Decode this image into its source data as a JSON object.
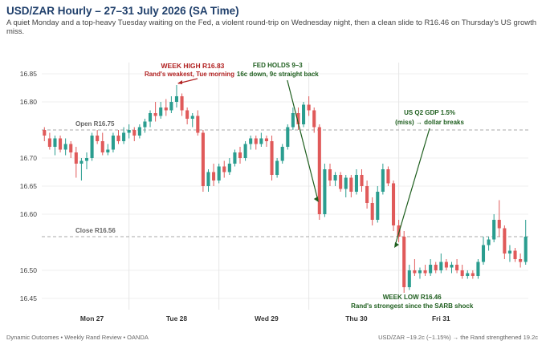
{
  "header": {
    "title": "USD/ZAR Hourly – 27–31 July 2026 (SA Time)",
    "subtitle": "A quiet Monday and a top-heavy Tuesday waiting on the Fed, a violent round-trip on Wednesday night, then a clean slide to R16.46 on Thursday's US growth miss."
  },
  "footer": {
    "source": "Dynamic Outcomes • Weekly Rand Review • OANDA",
    "summary": "USD/ZAR −19.2c (−1.15%) → the Rand strengthened 19.2c"
  },
  "chart_data": {
    "type": "candlestick",
    "ylim": [
      16.43,
      16.87
    ],
    "yticks": [
      16.45,
      16.5,
      16.6,
      16.65,
      16.7,
      16.8,
      16.85
    ],
    "ytick_labels": [
      "16.45",
      "16.50",
      "16.60",
      "16.65",
      "16.70",
      "16.80",
      "16.85"
    ],
    "x_labels": [
      {
        "label": "Mon 27",
        "at": 9
      },
      {
        "label": "Tue 28",
        "at": 25
      },
      {
        "label": "Wed 29",
        "at": 42
      },
      {
        "label": "Thu 30",
        "at": 59
      },
      {
        "label": "Fri 31",
        "at": 75
      }
    ],
    "day_separators": [
      16.5,
      33.5,
      50.5,
      67.5
    ],
    "reference_lines": [
      {
        "name": "Open",
        "value": 16.75,
        "label": "Open R16.75"
      },
      {
        "name": "Close",
        "value": 16.56,
        "label": "Close R16.56"
      }
    ],
    "colors": {
      "up": "#2a9d8f",
      "down": "#e05a5a",
      "annotation_red": "#b22222",
      "annotation_green": "#1e5e1e",
      "ref_line": "#aaaaaa"
    },
    "candles": [
      {
        "o": 16.75,
        "h": 16.755,
        "l": 16.73,
        "c": 16.74
      },
      {
        "o": 16.735,
        "h": 16.745,
        "l": 16.715,
        "c": 16.72
      },
      {
        "o": 16.72,
        "h": 16.74,
        "l": 16.705,
        "c": 16.735
      },
      {
        "o": 16.735,
        "h": 16.74,
        "l": 16.71,
        "c": 16.715
      },
      {
        "o": 16.715,
        "h": 16.735,
        "l": 16.705,
        "c": 16.725
      },
      {
        "o": 16.725,
        "h": 16.73,
        "l": 16.7,
        "c": 16.71
      },
      {
        "o": 16.71,
        "h": 16.72,
        "l": 16.665,
        "c": 16.69
      },
      {
        "o": 16.69,
        "h": 16.7,
        "l": 16.66,
        "c": 16.695
      },
      {
        "o": 16.695,
        "h": 16.71,
        "l": 16.68,
        "c": 16.7
      },
      {
        "o": 16.7,
        "h": 16.745,
        "l": 16.695,
        "c": 16.74
      },
      {
        "o": 16.74,
        "h": 16.75,
        "l": 16.725,
        "c": 16.73
      },
      {
        "o": 16.73,
        "h": 16.745,
        "l": 16.705,
        "c": 16.71
      },
      {
        "o": 16.71,
        "h": 16.725,
        "l": 16.705,
        "c": 16.715
      },
      {
        "o": 16.715,
        "h": 16.745,
        "l": 16.71,
        "c": 16.74
      },
      {
        "o": 16.74,
        "h": 16.75,
        "l": 16.725,
        "c": 16.73
      },
      {
        "o": 16.73,
        "h": 16.755,
        "l": 16.725,
        "c": 16.745
      },
      {
        "o": 16.745,
        "h": 16.76,
        "l": 16.735,
        "c": 16.75
      },
      {
        "o": 16.75,
        "h": 16.755,
        "l": 16.73,
        "c": 16.74
      },
      {
        "o": 16.74,
        "h": 16.76,
        "l": 16.735,
        "c": 16.755
      },
      {
        "o": 16.755,
        "h": 16.77,
        "l": 16.745,
        "c": 16.765
      },
      {
        "o": 16.765,
        "h": 16.785,
        "l": 16.755,
        "c": 16.78
      },
      {
        "o": 16.78,
        "h": 16.8,
        "l": 16.765,
        "c": 16.775
      },
      {
        "o": 16.775,
        "h": 16.8,
        "l": 16.77,
        "c": 16.79
      },
      {
        "o": 16.79,
        "h": 16.805,
        "l": 16.775,
        "c": 16.785
      },
      {
        "o": 16.785,
        "h": 16.81,
        "l": 16.78,
        "c": 16.8
      },
      {
        "o": 16.8,
        "h": 16.83,
        "l": 16.79,
        "c": 16.81
      },
      {
        "o": 16.81,
        "h": 16.815,
        "l": 16.775,
        "c": 16.785
      },
      {
        "o": 16.785,
        "h": 16.79,
        "l": 16.76,
        "c": 16.77
      },
      {
        "o": 16.77,
        "h": 16.78,
        "l": 16.755,
        "c": 16.775
      },
      {
        "o": 16.775,
        "h": 16.785,
        "l": 16.74,
        "c": 16.745
      },
      {
        "o": 16.745,
        "h": 16.75,
        "l": 16.64,
        "c": 16.65
      },
      {
        "o": 16.65,
        "h": 16.68,
        "l": 16.64,
        "c": 16.675
      },
      {
        "o": 16.675,
        "h": 16.69,
        "l": 16.65,
        "c": 16.66
      },
      {
        "o": 16.66,
        "h": 16.69,
        "l": 16.655,
        "c": 16.685
      },
      {
        "o": 16.685,
        "h": 16.695,
        "l": 16.665,
        "c": 16.675
      },
      {
        "o": 16.675,
        "h": 16.7,
        "l": 16.67,
        "c": 16.69
      },
      {
        "o": 16.69,
        "h": 16.715,
        "l": 16.685,
        "c": 16.71
      },
      {
        "o": 16.71,
        "h": 16.72,
        "l": 16.69,
        "c": 16.7
      },
      {
        "o": 16.7,
        "h": 16.73,
        "l": 16.695,
        "c": 16.725
      },
      {
        "o": 16.725,
        "h": 16.74,
        "l": 16.715,
        "c": 16.735
      },
      {
        "o": 16.735,
        "h": 16.74,
        "l": 16.715,
        "c": 16.725
      },
      {
        "o": 16.725,
        "h": 16.745,
        "l": 16.72,
        "c": 16.735
      },
      {
        "o": 16.735,
        "h": 16.74,
        "l": 16.72,
        "c": 16.73
      },
      {
        "o": 16.73,
        "h": 16.74,
        "l": 16.66,
        "c": 16.67
      },
      {
        "o": 16.67,
        "h": 16.7,
        "l": 16.665,
        "c": 16.695
      },
      {
        "o": 16.695,
        "h": 16.725,
        "l": 16.69,
        "c": 16.72
      },
      {
        "o": 16.72,
        "h": 16.76,
        "l": 16.715,
        "c": 16.755
      },
      {
        "o": 16.755,
        "h": 16.79,
        "l": 16.75,
        "c": 16.78
      },
      {
        "o": 16.78,
        "h": 16.79,
        "l": 16.75,
        "c": 16.76
      },
      {
        "o": 16.76,
        "h": 16.8,
        "l": 16.755,
        "c": 16.795
      },
      {
        "o": 16.795,
        "h": 16.81,
        "l": 16.775,
        "c": 16.785
      },
      {
        "o": 16.785,
        "h": 16.79,
        "l": 16.745,
        "c": 16.755
      },
      {
        "o": 16.755,
        "h": 16.76,
        "l": 16.59,
        "c": 16.6
      },
      {
        "o": 16.6,
        "h": 16.69,
        "l": 16.595,
        "c": 16.68
      },
      {
        "o": 16.68,
        "h": 16.69,
        "l": 16.65,
        "c": 16.66
      },
      {
        "o": 16.66,
        "h": 16.675,
        "l": 16.65,
        "c": 16.67
      },
      {
        "o": 16.67,
        "h": 16.675,
        "l": 16.64,
        "c": 16.645
      },
      {
        "o": 16.645,
        "h": 16.67,
        "l": 16.63,
        "c": 16.665
      },
      {
        "o": 16.665,
        "h": 16.67,
        "l": 16.63,
        "c": 16.64
      },
      {
        "o": 16.64,
        "h": 16.68,
        "l": 16.635,
        "c": 16.67
      },
      {
        "o": 16.67,
        "h": 16.68,
        "l": 16.64,
        "c": 16.65
      },
      {
        "o": 16.65,
        "h": 16.66,
        "l": 16.61,
        "c": 16.62
      },
      {
        "o": 16.62,
        "h": 16.63,
        "l": 16.58,
        "c": 16.59
      },
      {
        "o": 16.59,
        "h": 16.65,
        "l": 16.585,
        "c": 16.64
      },
      {
        "o": 16.64,
        "h": 16.69,
        "l": 16.635,
        "c": 16.68
      },
      {
        "o": 16.68,
        "h": 16.685,
        "l": 16.65,
        "c": 16.655
      },
      {
        "o": 16.655,
        "h": 16.66,
        "l": 16.57,
        "c": 16.58
      },
      {
        "o": 16.58,
        "h": 16.59,
        "l": 16.55,
        "c": 16.56
      },
      {
        "o": 16.56,
        "h": 16.57,
        "l": 16.46,
        "c": 16.47
      },
      {
        "o": 16.47,
        "h": 16.51,
        "l": 16.465,
        "c": 16.5
      },
      {
        "o": 16.5,
        "h": 16.52,
        "l": 16.49,
        "c": 16.495
      },
      {
        "o": 16.495,
        "h": 16.505,
        "l": 16.485,
        "c": 16.5
      },
      {
        "o": 16.5,
        "h": 16.51,
        "l": 16.49,
        "c": 16.495
      },
      {
        "o": 16.495,
        "h": 16.52,
        "l": 16.49,
        "c": 16.51
      },
      {
        "o": 16.51,
        "h": 16.515,
        "l": 16.495,
        "c": 16.5
      },
      {
        "o": 16.5,
        "h": 16.53,
        "l": 16.495,
        "c": 16.515
      },
      {
        "o": 16.515,
        "h": 16.52,
        "l": 16.5,
        "c": 16.505
      },
      {
        "o": 16.505,
        "h": 16.515,
        "l": 16.495,
        "c": 16.51
      },
      {
        "o": 16.51,
        "h": 16.52,
        "l": 16.495,
        "c": 16.5
      },
      {
        "o": 16.5,
        "h": 16.51,
        "l": 16.485,
        "c": 16.49
      },
      {
        "o": 16.49,
        "h": 16.5,
        "l": 16.485,
        "c": 16.495
      },
      {
        "o": 16.495,
        "h": 16.5,
        "l": 16.485,
        "c": 16.49
      },
      {
        "o": 16.49,
        "h": 16.52,
        "l": 16.485,
        "c": 16.515
      },
      {
        "o": 16.515,
        "h": 16.56,
        "l": 16.51,
        "c": 16.545
      },
      {
        "o": 16.545,
        "h": 16.56,
        "l": 16.535,
        "c": 16.555
      },
      {
        "o": 16.555,
        "h": 16.6,
        "l": 16.55,
        "c": 16.59
      },
      {
        "o": 16.59,
        "h": 16.625,
        "l": 16.56,
        "c": 16.575
      },
      {
        "o": 16.575,
        "h": 16.58,
        "l": 16.52,
        "c": 16.53
      },
      {
        "o": 16.53,
        "h": 16.545,
        "l": 16.515,
        "c": 16.535
      },
      {
        "o": 16.535,
        "h": 16.54,
        "l": 16.515,
        "c": 16.52
      },
      {
        "o": 16.52,
        "h": 16.53,
        "l": 16.505,
        "c": 16.515
      },
      {
        "o": 16.515,
        "h": 16.59,
        "l": 16.51,
        "c": 16.56
      }
    ],
    "annotations": {
      "week_high": {
        "title": "WEEK HIGH R16.83",
        "caption": "Rand's weakest, Tue morning",
        "candle": 25,
        "value": 16.83
      },
      "fed": {
        "title": "FED HOLDS 9–3",
        "caption": "16c down, 9c straight back",
        "candle": 52,
        "value": 16.62
      },
      "gdp": {
        "title": "US Q2 GDP 1.5%",
        "caption": "(miss) → dollar breaks",
        "candle": 66,
        "value": 16.54
      },
      "week_low": {
        "title": "WEEK LOW R16.46",
        "caption": "Rand's strongest since the SARB shock",
        "candle": 68,
        "value": 16.46
      }
    }
  }
}
